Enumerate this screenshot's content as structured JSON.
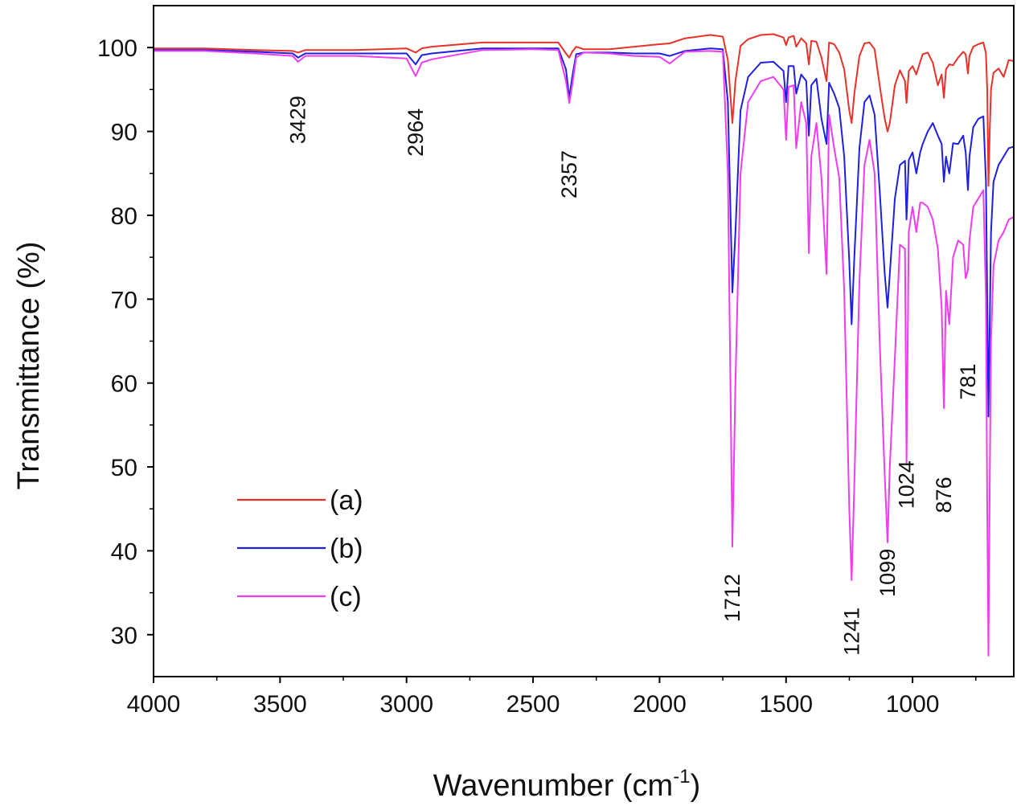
{
  "chart_data": {
    "type": "line",
    "xlabel": "Wavenumber (cm",
    "xlabel_sup": "-1",
    "xlabel_close": ")",
    "ylabel": "Transmittance (%)",
    "xlim": [
      4000,
      600
    ],
    "ylim": [
      25,
      105
    ],
    "x_reversed": true,
    "x_ticks": [
      4000,
      3500,
      3000,
      2500,
      2000,
      1500,
      1000
    ],
    "x_tick_labels": [
      "4000",
      "3500",
      "3000",
      "2500",
      "2000",
      "1500",
      "1000"
    ],
    "y_ticks": [
      30,
      40,
      50,
      60,
      70,
      80,
      90,
      100
    ],
    "y_tick_labels": [
      "30",
      "40",
      "50",
      "60",
      "70",
      "80",
      "90",
      "100"
    ],
    "grid": false,
    "legend_position": "bottom-left",
    "series": [
      {
        "name": "(a)",
        "color": "#e8312a",
        "x": [
          4000,
          3800,
          3600,
          3450,
          3429,
          3400,
          3200,
          3000,
          2964,
          2940,
          2900,
          2700,
          2500,
          2400,
          2370,
          2357,
          2345,
          2330,
          2300,
          2200,
          2100,
          2000,
          1960,
          1900,
          1800,
          1750,
          1730,
          1712,
          1700,
          1680,
          1650,
          1600,
          1550,
          1510,
          1500,
          1490,
          1470,
          1460,
          1440,
          1420,
          1410,
          1400,
          1380,
          1360,
          1340,
          1330,
          1310,
          1290,
          1270,
          1250,
          1241,
          1230,
          1210,
          1190,
          1170,
          1150,
          1130,
          1110,
          1099,
          1090,
          1070,
          1050,
          1030,
          1024,
          1015,
          1000,
          985,
          970,
          960,
          940,
          920,
          900,
          885,
          876,
          868,
          855,
          840,
          820,
          800,
          790,
          781,
          775,
          760,
          740,
          720,
          710,
          705,
          700,
          695,
          690,
          680,
          660,
          640,
          620,
          600
        ],
        "y": [
          99.9,
          99.9,
          99.7,
          99.6,
          99.4,
          99.7,
          99.7,
          99.9,
          99.4,
          99.9,
          100.1,
          100.6,
          100.6,
          100.6,
          99.3,
          98.8,
          99.5,
          100.1,
          99.8,
          99.8,
          100.1,
          100.4,
          100.5,
          101.1,
          101.5,
          101.3,
          98.5,
          91.0,
          96.0,
          100.2,
          101.0,
          101.5,
          101.6,
          101.2,
          100.3,
          101.2,
          101.4,
          100.1,
          101.1,
          100.5,
          98.0,
          100.8,
          100.7,
          98.8,
          96.0,
          100.6,
          100.4,
          99.4,
          97.4,
          92.5,
          91.0,
          94.5,
          99.0,
          100.5,
          100.6,
          99.8,
          95.5,
          91.5,
          90.0,
          91.0,
          95.5,
          97.3,
          96.0,
          93.4,
          97.2,
          97.8,
          96.8,
          98.3,
          99.2,
          99.4,
          98.2,
          95.5,
          96.8,
          94.0,
          97.4,
          98.0,
          97.9,
          98.8,
          99.5,
          99.2,
          96.9,
          99.0,
          100.1,
          100.4,
          100.6,
          99.3,
          95.0,
          83.5,
          90.0,
          95.0,
          97.0,
          97.5,
          96.5,
          98.5,
          98.4
        ]
      },
      {
        "name": "(b)",
        "color": "#1f1fe0",
        "x": [
          4000,
          3800,
          3600,
          3450,
          3429,
          3400,
          3200,
          3000,
          2964,
          2940,
          2900,
          2700,
          2500,
          2400,
          2370,
          2357,
          2345,
          2330,
          2300,
          2200,
          2100,
          2000,
          1960,
          1900,
          1800,
          1750,
          1730,
          1712,
          1700,
          1680,
          1650,
          1600,
          1550,
          1510,
          1500,
          1490,
          1470,
          1460,
          1440,
          1420,
          1410,
          1400,
          1380,
          1360,
          1340,
          1330,
          1310,
          1290,
          1270,
          1250,
          1241,
          1230,
          1210,
          1190,
          1170,
          1150,
          1130,
          1110,
          1099,
          1090,
          1070,
          1050,
          1030,
          1024,
          1015,
          1000,
          985,
          970,
          960,
          940,
          920,
          900,
          885,
          876,
          868,
          855,
          840,
          820,
          800,
          790,
          781,
          775,
          760,
          740,
          720,
          710,
          705,
          700,
          695,
          690,
          680,
          660,
          640,
          620,
          600
        ],
        "y": [
          99.7,
          99.7,
          99.5,
          99.3,
          98.8,
          99.3,
          99.3,
          99.3,
          98.0,
          99.1,
          99.3,
          99.9,
          99.9,
          99.9,
          97.4,
          94.0,
          96.5,
          99.2,
          99.4,
          99.4,
          99.3,
          99.3,
          99.0,
          99.6,
          99.9,
          99.8,
          93.5,
          70.8,
          78.0,
          92.5,
          96.5,
          98.2,
          98.3,
          97.2,
          93.5,
          97.8,
          97.8,
          94.5,
          96.8,
          96.0,
          89.5,
          95.5,
          96.3,
          91.5,
          88.5,
          95.8,
          94.5,
          92.8,
          87.0,
          74.5,
          67.0,
          75.0,
          88.0,
          93.5,
          94.3,
          92.0,
          83.0,
          73.0,
          69.0,
          73.0,
          82.0,
          86.0,
          86.5,
          79.5,
          86.6,
          87.5,
          85.0,
          87.5,
          88.5,
          90.0,
          91.0,
          89.5,
          88.5,
          84.0,
          87.0,
          85.0,
          88.6,
          88.5,
          89.5,
          87.5,
          83.0,
          87.0,
          90.5,
          91.5,
          91.8,
          84.0,
          70.0,
          56.0,
          67.0,
          78.0,
          84.0,
          86.0,
          87.0,
          88.0,
          88.2
        ]
      },
      {
        "name": "(c)",
        "color": "#f03cf0",
        "x": [
          4000,
          3800,
          3600,
          3450,
          3429,
          3400,
          3200,
          3000,
          2964,
          2940,
          2900,
          2700,
          2500,
          2400,
          2370,
          2357,
          2345,
          2330,
          2300,
          2200,
          2100,
          2000,
          1960,
          1900,
          1800,
          1750,
          1730,
          1712,
          1700,
          1680,
          1650,
          1600,
          1550,
          1510,
          1500,
          1490,
          1470,
          1460,
          1440,
          1420,
          1410,
          1400,
          1380,
          1360,
          1340,
          1330,
          1310,
          1290,
          1270,
          1250,
          1241,
          1230,
          1210,
          1190,
          1170,
          1150,
          1130,
          1110,
          1099,
          1090,
          1070,
          1050,
          1030,
          1024,
          1015,
          1000,
          985,
          970,
          960,
          940,
          920,
          900,
          885,
          876,
          868,
          855,
          840,
          820,
          800,
          790,
          781,
          775,
          760,
          740,
          720,
          710,
          705,
          700,
          695,
          690,
          680,
          660,
          640,
          620,
          600
        ],
        "y": [
          99.6,
          99.6,
          99.3,
          99.0,
          98.3,
          99.0,
          99.0,
          98.7,
          96.6,
          98.2,
          98.6,
          99.7,
          99.8,
          99.7,
          96.0,
          93.4,
          95.5,
          98.8,
          99.4,
          99.3,
          99.0,
          98.9,
          98.1,
          99.5,
          99.6,
          99.5,
          85.0,
          40.5,
          60.0,
          85.0,
          93.5,
          96.0,
          96.5,
          95.0,
          89.0,
          95.3,
          95.5,
          88.0,
          93.5,
          91.0,
          75.5,
          87.0,
          91.0,
          84.5,
          73.0,
          92.0,
          88.0,
          84.5,
          71.0,
          45.0,
          36.5,
          48.0,
          72.0,
          86.0,
          89.0,
          85.0,
          65.0,
          49.0,
          41.0,
          50.0,
          63.0,
          76.5,
          76.0,
          50.5,
          78.0,
          81.0,
          78.0,
          81.5,
          81.5,
          81.0,
          79.5,
          76.0,
          69.0,
          57.0,
          71.0,
          67.0,
          75.0,
          77.0,
          76.5,
          72.5,
          73.5,
          77.0,
          81.0,
          82.0,
          83.0,
          70.0,
          45.0,
          27.5,
          48.0,
          65.0,
          74.0,
          77.0,
          78.0,
          79.5,
          79.8
        ]
      }
    ],
    "annotations": [
      {
        "text": "3429",
        "x": 3429,
        "y": 88.5
      },
      {
        "text": "2964",
        "x": 2964,
        "y": 87.0
      },
      {
        "text": "2357",
        "x": 2357,
        "y": 82.0
      },
      {
        "text": "1712",
        "x": 1712,
        "y": 31.5
      },
      {
        "text": "1241",
        "x": 1241,
        "y": 27.5
      },
      {
        "text": "1099",
        "x": 1099,
        "y": 34.5
      },
      {
        "text": "1024",
        "x": 1024,
        "y": 45.0
      },
      {
        "text": "876",
        "x": 876,
        "y": 44.5
      },
      {
        "text": "781",
        "x": 781,
        "y": 58.0
      }
    ]
  }
}
